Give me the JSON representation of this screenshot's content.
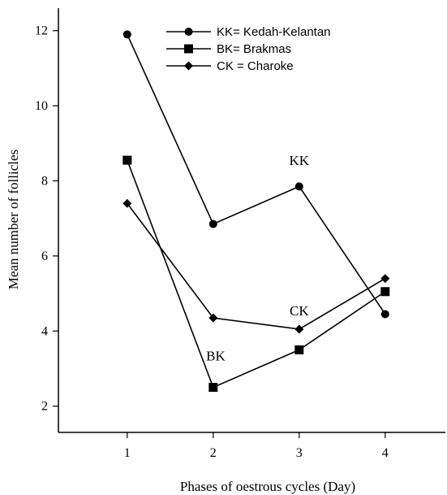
{
  "chart_data": {
    "type": "line",
    "title": "",
    "xlabel": "Phases of oestrous cycles (Day)",
    "ylabel": "Mean number of follicles",
    "x": [
      1,
      2,
      3,
      4
    ],
    "xticks": [
      "1",
      "2",
      "3",
      "4"
    ],
    "yticks": [
      "2",
      "4",
      "6",
      "8",
      "10",
      "12"
    ],
    "xlim": [
      0.2,
      4.7
    ],
    "ylim": [
      1.3,
      12.6
    ],
    "grid": false,
    "legend_position": "top-center",
    "series": [
      {
        "name": "KK= Kedah-Kelantan",
        "marker": "circle",
        "values": [
          11.9,
          6.85,
          7.85,
          4.45
        ]
      },
      {
        "name": "BK= Brakmas",
        "marker": "square",
        "values": [
          8.55,
          2.5,
          3.5,
          5.05
        ]
      },
      {
        "name": "CK = Charoke",
        "marker": "diamond",
        "values": [
          7.4,
          4.35,
          4.05,
          5.4
        ]
      }
    ],
    "annotations": [
      {
        "text": "KK",
        "x": 3,
        "y": 8.55
      },
      {
        "text": "CK",
        "x": 3,
        "y": 4.55
      },
      {
        "text": "BK",
        "x": 2.03,
        "y": 3.35
      }
    ]
  }
}
